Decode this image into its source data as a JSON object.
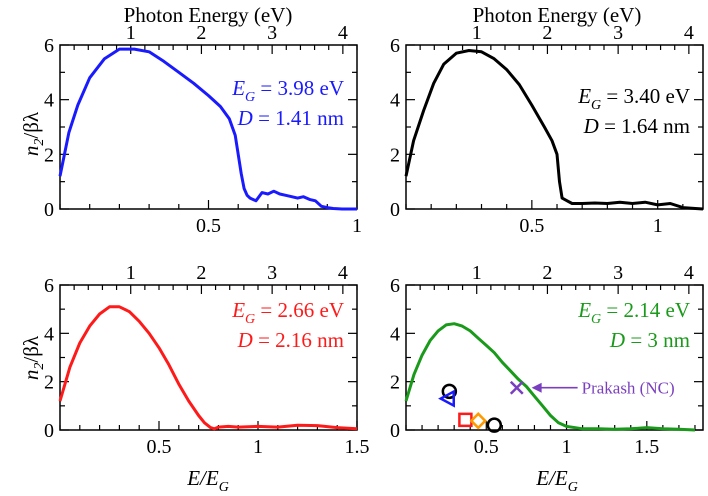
{
  "figure": {
    "top_axis_label": "Photon Energy (eV)",
    "bottom_axis_label_base": "E/E",
    "bottom_axis_label_sub": "G",
    "y_axis_label_parts": [
      "n",
      "2",
      "/βλ"
    ]
  },
  "chart_data": [
    {
      "type": "line",
      "panel": "top-left",
      "color": "#1a1aff",
      "x_label": "E/E_G",
      "x2_label": "Photon Energy (eV)",
      "y_label": "n2/βλ",
      "xlim": [
        0.0,
        1.0
      ],
      "ylim": [
        0,
        6
      ],
      "x_ticks": [
        0.5,
        1
      ],
      "x_tick_labels": [
        "0.5",
        "1"
      ],
      "x_tick_labels_visible": true,
      "y_ticks": [
        0,
        2,
        4,
        6
      ],
      "y_tick_labels": [
        "0",
        "2",
        "4",
        "6"
      ],
      "x2_ticks": [
        1,
        2,
        3,
        4
      ],
      "x2_tick_labels": [
        "1",
        "2",
        "3",
        "4"
      ],
      "annotation_lines": [
        {
          "sym": "E",
          "sub": "G",
          "rest": " = 3.98 eV"
        },
        {
          "sym": "D",
          "sub": "",
          "rest": " = 1.41 nm"
        }
      ],
      "series": [
        {
          "x": [
            0.0,
            0.03,
            0.06,
            0.1,
            0.15,
            0.2,
            0.25,
            0.3,
            0.35,
            0.4,
            0.45,
            0.5,
            0.54,
            0.57,
            0.59,
            0.6,
            0.61,
            0.62,
            0.63,
            0.64,
            0.66,
            0.68,
            0.7,
            0.72,
            0.74,
            0.76,
            0.78,
            0.8,
            0.82,
            0.84,
            0.86,
            0.88,
            0.9,
            0.92,
            0.95,
            1.0
          ],
          "y": [
            1.2,
            2.8,
            3.8,
            4.8,
            5.5,
            5.85,
            5.85,
            5.75,
            5.4,
            5.0,
            4.6,
            4.15,
            3.75,
            3.3,
            2.7,
            2.0,
            1.3,
            0.75,
            0.5,
            0.4,
            0.3,
            0.6,
            0.55,
            0.65,
            0.55,
            0.5,
            0.45,
            0.4,
            0.45,
            0.35,
            0.3,
            0.1,
            0.05,
            0.02,
            0.0,
            0.0
          ]
        }
      ]
    },
    {
      "type": "line",
      "panel": "top-right",
      "color": "#000000",
      "x_label": "E/E_G",
      "x2_label": "Photon Energy (eV)",
      "y_label": "n2/βλ",
      "xlim": [
        0.0,
        1.18
      ],
      "ylim": [
        0,
        6
      ],
      "x_ticks": [
        0.5,
        1
      ],
      "x_tick_labels": [
        "0.5",
        "1"
      ],
      "x_tick_labels_visible": true,
      "y_ticks": [
        0,
        2,
        4,
        6
      ],
      "y_tick_labels": [
        "0",
        "2",
        "4",
        "6"
      ],
      "x2_ticks": [
        1,
        2,
        3,
        4
      ],
      "x2_tick_labels": [
        "1",
        "2",
        "3",
        "4"
      ],
      "annotation_lines": [
        {
          "sym": "E",
          "sub": "G",
          "rest": " = 3.40 eV"
        },
        {
          "sym": "D",
          "sub": "",
          "rest": " = 1.64 nm"
        }
      ],
      "series": [
        {
          "x": [
            0.0,
            0.03,
            0.07,
            0.11,
            0.15,
            0.2,
            0.25,
            0.3,
            0.35,
            0.4,
            0.45,
            0.5,
            0.55,
            0.58,
            0.6,
            0.61,
            0.62,
            0.64,
            0.66,
            0.7,
            0.75,
            0.8,
            0.85,
            0.9,
            0.95,
            1.0,
            1.05,
            1.1,
            1.15,
            1.18
          ],
          "y": [
            1.2,
            2.5,
            3.6,
            4.6,
            5.3,
            5.7,
            5.8,
            5.75,
            5.5,
            5.1,
            4.55,
            3.8,
            3.0,
            2.5,
            2.0,
            1.0,
            0.4,
            0.3,
            0.2,
            0.2,
            0.22,
            0.2,
            0.25,
            0.2,
            0.25,
            0.15,
            0.2,
            0.05,
            0.02,
            0.0
          ]
        }
      ]
    },
    {
      "type": "line",
      "panel": "bottom-left",
      "color": "#ff1a1a",
      "x_label": "E/E_G",
      "x2_label": "Photon Energy (eV)",
      "y_label": "n2/βλ",
      "xlim": [
        0.0,
        1.5
      ],
      "ylim": [
        0,
        6
      ],
      "x_ticks": [
        0.5,
        1,
        1.5
      ],
      "x_tick_labels": [
        "0.5",
        "1",
        "1.5"
      ],
      "x_tick_labels_visible": true,
      "y_ticks": [
        0,
        2,
        4,
        6
      ],
      "y_tick_labels": [
        "0",
        "2",
        "4",
        "6"
      ],
      "x2_ticks": [
        1,
        2,
        3,
        4
      ],
      "x2_tick_labels": [
        "1",
        "2",
        "3",
        "4"
      ],
      "annotation_lines": [
        {
          "sym": "E",
          "sub": "G",
          "rest": " = 2.66 eV"
        },
        {
          "sym": "D",
          "sub": "",
          "rest": " = 2.16 nm"
        }
      ],
      "series": [
        {
          "x": [
            0.0,
            0.05,
            0.1,
            0.15,
            0.2,
            0.25,
            0.3,
            0.35,
            0.4,
            0.45,
            0.5,
            0.55,
            0.6,
            0.65,
            0.7,
            0.73,
            0.76,
            0.78,
            0.8,
            0.85,
            0.9,
            1.0,
            1.1,
            1.2,
            1.3,
            1.4,
            1.5
          ],
          "y": [
            1.2,
            2.6,
            3.6,
            4.3,
            4.8,
            5.1,
            5.1,
            4.9,
            4.5,
            4.0,
            3.4,
            2.7,
            1.9,
            1.2,
            0.6,
            0.3,
            0.1,
            0.05,
            0.12,
            0.15,
            0.12,
            0.15,
            0.12,
            0.2,
            0.18,
            0.1,
            0.05
          ]
        }
      ]
    },
    {
      "type": "line",
      "panel": "bottom-right",
      "color": "#1a9a1a",
      "x_label": "E/E_G",
      "x2_label": "Photon Energy (eV)",
      "y_label": "n2/βλ",
      "xlim": [
        0.0,
        1.85
      ],
      "ylim": [
        0,
        6
      ],
      "x_ticks": [
        0.5,
        1,
        1.5
      ],
      "x_tick_labels": [
        "0.5",
        "1",
        "1.5"
      ],
      "x_tick_labels_visible": true,
      "y_ticks": [
        0,
        2,
        4,
        6
      ],
      "y_tick_labels": [
        "0",
        "2",
        "4",
        "6"
      ],
      "x2_ticks": [
        1,
        2,
        3,
        4
      ],
      "x2_tick_labels": [
        "1",
        "2",
        "3",
        "4"
      ],
      "annotation_lines": [
        {
          "sym": "E",
          "sub": "G",
          "rest": " = 2.14 eV"
        },
        {
          "sym": "D",
          "sub": "",
          "rest": " = 3 nm"
        }
      ],
      "series": [
        {
          "x": [
            0.0,
            0.05,
            0.1,
            0.15,
            0.2,
            0.25,
            0.3,
            0.35,
            0.4,
            0.45,
            0.5,
            0.55,
            0.6,
            0.65,
            0.7,
            0.75,
            0.8,
            0.85,
            0.9,
            0.95,
            1.0,
            1.1,
            1.2,
            1.3,
            1.4,
            1.5,
            1.6,
            1.7,
            1.8
          ],
          "y": [
            1.2,
            2.3,
            3.1,
            3.7,
            4.1,
            4.35,
            4.4,
            4.3,
            4.1,
            3.8,
            3.5,
            3.2,
            2.8,
            2.45,
            2.1,
            1.8,
            1.4,
            1.0,
            0.6,
            0.3,
            0.15,
            0.05,
            0.05,
            0.03,
            0.05,
            0.1,
            0.05,
            0.03,
            0.0
          ]
        }
      ],
      "markers": [
        {
          "shape": "circle",
          "x": 0.27,
          "y": 1.6,
          "color": "#000000"
        },
        {
          "shape": "triangle-left",
          "x": 0.26,
          "y": 1.3,
          "color": "#1a1aff"
        },
        {
          "shape": "square",
          "x": 0.37,
          "y": 0.42,
          "color": "#ff1a1a"
        },
        {
          "shape": "diamond",
          "x": 0.45,
          "y": 0.38,
          "color": "#ff9900"
        },
        {
          "shape": "circle",
          "x": 0.55,
          "y": 0.2,
          "color": "#000000"
        },
        {
          "shape": "cross",
          "x": 0.69,
          "y": 1.75,
          "color": "#7a3fbf"
        }
      ],
      "callout": {
        "text": "Prakash (NC)",
        "color": "#7a3fbf",
        "x": 0.77,
        "y": 1.75
      }
    }
  ]
}
